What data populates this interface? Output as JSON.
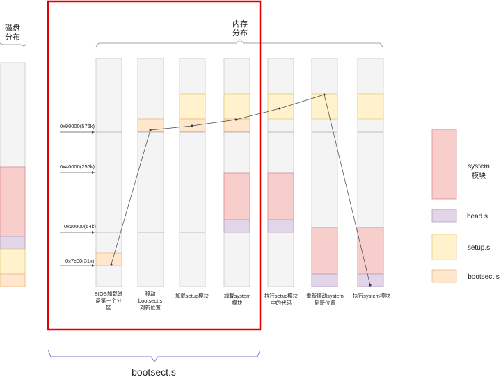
{
  "colors": {
    "column_bg": "#f4f4f4",
    "column_border": "#c8c8c8",
    "system": "#f8cecc",
    "system_border": "#d98c8a",
    "head": "#e1d5e7",
    "head_border": "#b39bc4",
    "setup": "#fff2cc",
    "setup_border": "#e2cc7d",
    "bootsect": "#ffe6cc",
    "bootsect_border": "#e8b985",
    "highlight": "#e00000",
    "brace": "#8f8fd6"
  },
  "disk": {
    "label_line1": "磁盘",
    "label_line2": "分布"
  },
  "memory": {
    "label_line1": "内存",
    "label_line2": "分布"
  },
  "address_labels": [
    "0x90000(576k)",
    "0x40000(256k)",
    "0x10000(64k)",
    "0x7c00(31k)"
  ],
  "stages": [
    {
      "lines": [
        "BIOS加载磁",
        "盘第一个分",
        "区"
      ]
    },
    {
      "lines": [
        "移动",
        "bootsect.s",
        "到新位置"
      ]
    },
    {
      "lines": [
        "加载setup模块"
      ]
    },
    {
      "lines": [
        "加载system",
        "模块"
      ]
    },
    {
      "lines": [
        "执行setup模块",
        "中的代码"
      ]
    },
    {
      "lines": [
        "重新挪动system",
        "到新位置"
      ]
    },
    {
      "lines": [
        "执行system模块"
      ]
    }
  ],
  "legend": [
    {
      "key": "system",
      "lines": [
        "system",
        "模块"
      ]
    },
    {
      "key": "head",
      "lines": [
        "head.s"
      ]
    },
    {
      "key": "setup",
      "lines": [
        "setup.s"
      ]
    },
    {
      "key": "bootsect",
      "lines": [
        "bootsect.s"
      ]
    }
  ],
  "bottom_label": "bootsect.s"
}
